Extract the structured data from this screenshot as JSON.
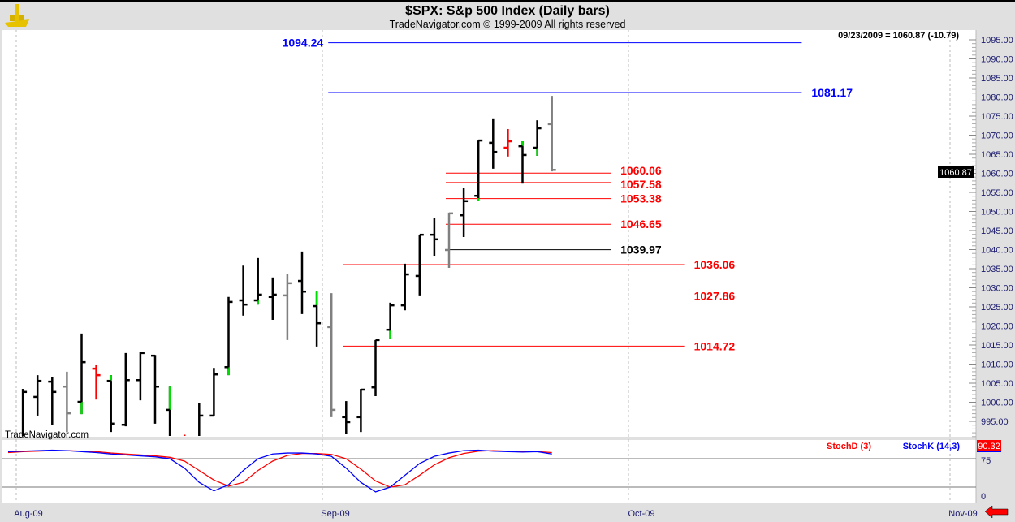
{
  "header": {
    "title": "$SPX:  S&p 500 Index  (Daily bars)",
    "copyright": "TradeNavigator.com © 1999-2009 All rights reserved",
    "readout": "09/23/2009 = 1060.87 (-10.79)",
    "watermark": "TradeNavigator.com"
  },
  "colors": {
    "up": "#000000",
    "gray": "#808080",
    "red": "#ff0000",
    "green": "#00dd00",
    "blue": "#0000ff",
    "axis_text": "#1a1a6e"
  },
  "chart_data": {
    "type": "ohlc",
    "title": "$SPX: S&p 500 Index (Daily bars)",
    "ylim": [
      993,
      1097
    ],
    "y_ticks": [
      995,
      1000,
      1005,
      1010,
      1015,
      1020,
      1025,
      1030,
      1035,
      1040,
      1045,
      1050,
      1055,
      1060,
      1065,
      1070,
      1075,
      1080,
      1085,
      1090,
      1095
    ],
    "last_price": "1060.87",
    "x_ticks": [
      "Aug-09",
      "Sep-09",
      "Oct-09",
      "Nov-09"
    ],
    "bars": [
      {
        "o": 990,
        "h": 991,
        "l": 985,
        "c": 989,
        "col": "red"
      },
      {
        "o": 990,
        "h": 1003.5,
        "l": 985,
        "c": 1002.7,
        "col": "up"
      },
      {
        "o": 1001.4,
        "h": 1007.1,
        "l": 996.5,
        "c": 1005.6,
        "col": "up"
      },
      {
        "o": 1005.4,
        "h": 1006.7,
        "l": 994.1,
        "c": 1002.7,
        "col": "up"
      },
      {
        "o": 1004.1,
        "h": 1008,
        "l": 992.2,
        "c": 997.1,
        "col": "gray"
      },
      {
        "o": 1000.1,
        "h": 1018,
        "l": 996.9,
        "c": 1010.5,
        "col": "up",
        "g": [
          996.9,
          1000.1
        ]
      },
      {
        "o": 1008.8,
        "h": 1009.9,
        "l": 1000.7,
        "c": 1007.1,
        "col": "red"
      },
      {
        "o": 1005.6,
        "h": 1007.1,
        "l": 992.2,
        "c": 994.4,
        "col": "up",
        "g": [
          1005.6,
          1007.1
        ]
      },
      {
        "o": 994.1,
        "h": 1012.9,
        "l": 993.7,
        "c": 1005.8,
        "col": "up"
      },
      {
        "o": 1005.8,
        "h": 1013.2,
        "l": 1000.5,
        "c": 1012.9,
        "col": "up"
      },
      {
        "o": 1012.2,
        "h": 1012.4,
        "l": 994.4,
        "c": 1004.1,
        "col": "up"
      },
      {
        "o": 998,
        "h": 1004.1,
        "l": 985,
        "c": 988,
        "col": "up",
        "g": [
          998,
          1004.1
        ]
      },
      {
        "o": 991,
        "h": 991.5,
        "l": 985,
        "c": 990,
        "col": "red"
      },
      {
        "o": 988,
        "h": 999.7,
        "l": 985,
        "c": 996.5,
        "col": "up"
      },
      {
        "o": 996.5,
        "h": 1009,
        "l": 996.5,
        "c": 1007.3,
        "col": "up"
      },
      {
        "o": 1009.2,
        "h": 1027.6,
        "l": 1007.1,
        "c": 1026.3,
        "col": "up",
        "g": [
          1007.1,
          1009.2
        ]
      },
      {
        "o": 1026.7,
        "h": 1035.8,
        "l": 1022.7,
        "c": 1025.6,
        "col": "up"
      },
      {
        "o": 1026.7,
        "h": 1037.8,
        "l": 1025.6,
        "c": 1028.2,
        "col": "up",
        "g": [
          1025.6,
          1026.7
        ]
      },
      {
        "o": 1027.6,
        "h": 1032.7,
        "l": 1021.6,
        "c": 1028.2,
        "col": "up"
      },
      {
        "o": 1028,
        "h": 1033.5,
        "l": 1016.3,
        "c": 1031.2,
        "col": "gray"
      },
      {
        "o": 1031.8,
        "h": 1039.5,
        "l": 1023.1,
        "c": 1029,
        "col": "up"
      },
      {
        "o": 1025.2,
        "h": 1029,
        "l": 1014.6,
        "c": 1020.7,
        "col": "up",
        "g": [
          1025.2,
          1029
        ]
      },
      {
        "o": 1019.7,
        "h": 1028.6,
        "l": 996.1,
        "c": 998,
        "col": "gray"
      },
      {
        "o": 996.1,
        "h": 1000.3,
        "l": 991.8,
        "c": 994.8,
        "col": "up"
      },
      {
        "o": 996.1,
        "h": 1003.5,
        "l": 992.2,
        "c": 1003.3,
        "col": "up"
      },
      {
        "o": 1003.9,
        "h": 1016.3,
        "l": 1001.6,
        "c": 1016.3,
        "col": "up"
      },
      {
        "o": 1019,
        "h": 1026.1,
        "l": 1016.5,
        "c": 1025.4,
        "col": "up",
        "g": [
          1016.5,
          1019
        ]
      },
      {
        "o": 1025.4,
        "h": 1036.3,
        "l": 1024.1,
        "c": 1033.5,
        "col": "up"
      },
      {
        "o": 1033.1,
        "h": 1043.9,
        "l": 1028,
        "c": 1043.9,
        "col": "up"
      },
      {
        "o": 1043.9,
        "h": 1048.2,
        "l": 1038.4,
        "c": 1042.7,
        "col": "up"
      },
      {
        "o": 1039.9,
        "h": 1049.7,
        "l": 1035.2,
        "c": 1049.5,
        "col": "gray"
      },
      {
        "o": 1049,
        "h": 1056.1,
        "l": 1043.3,
        "c": 1052.7,
        "col": "up"
      },
      {
        "o": 1054.1,
        "h": 1068.6,
        "l": 1052.7,
        "c": 1068.6,
        "col": "up",
        "g": [
          1052.7,
          1053.5
        ]
      },
      {
        "o": 1068,
        "h": 1074.4,
        "l": 1061.2,
        "c": 1065.6,
        "col": "up"
      },
      {
        "o": 1066.7,
        "h": 1071.6,
        "l": 1064.4,
        "c": 1068.4,
        "col": "red"
      },
      {
        "o": 1067.1,
        "h": 1068.4,
        "l": 1057.3,
        "c": 1064.8,
        "col": "up",
        "g": [
          1067.1,
          1068.4
        ]
      },
      {
        "o": 1066.7,
        "h": 1073.9,
        "l": 1064.6,
        "c": 1071.8,
        "col": "up",
        "g": [
          1064.6,
          1066.7
        ]
      },
      {
        "o": 1072.9,
        "h": 1080.3,
        "l": 1060.5,
        "c": 1060.9,
        "col": "gray"
      }
    ],
    "levels": [
      {
        "value": 1094.24,
        "label": "1094.24",
        "color": "blue",
        "from_bar": 22,
        "to_bar": 54,
        "label_side": "left"
      },
      {
        "value": 1081.17,
        "label": "1081.17",
        "color": "blue",
        "from_bar": 22,
        "to_bar": 54,
        "label_side": "right"
      },
      {
        "value": 1060.06,
        "label": "1060.06",
        "color": "red",
        "from_bar": 30,
        "to_bar": 41,
        "label_side": "right"
      },
      {
        "value": 1057.58,
        "label": "1057.58",
        "color": "red",
        "from_bar": 30,
        "to_bar": 41,
        "label_side": "right"
      },
      {
        "value": 1053.38,
        "label": "1053.38",
        "color": "red",
        "from_bar": 30,
        "to_bar": 41,
        "label_side": "right"
      },
      {
        "value": 1046.65,
        "label": "1046.65",
        "color": "red",
        "from_bar": 30,
        "to_bar": 41,
        "label_side": "right"
      },
      {
        "value": 1039.97,
        "label": "1039.97",
        "color": "up",
        "from_bar": 30,
        "to_bar": 41,
        "label_side": "right"
      },
      {
        "value": 1036.06,
        "label": "1036.06",
        "color": "red",
        "from_bar": 23,
        "to_bar": 46,
        "label_side": "right"
      },
      {
        "value": 1027.86,
        "label": "1027.86",
        "color": "red",
        "from_bar": 23,
        "to_bar": 46,
        "label_side": "right"
      },
      {
        "value": 1014.72,
        "label": "1014.72",
        "color": "red",
        "from_bar": 23,
        "to_bar": 46,
        "label_side": "right"
      }
    ],
    "stochastic": {
      "d_label": "StochD (3)",
      "k_label": "StochK (14,3)",
      "last_value": "90.32",
      "y_ticks": [
        "75",
        "0"
      ],
      "k": [
        95,
        96,
        97,
        98,
        97,
        95,
        93,
        90,
        88,
        86,
        84,
        80,
        60,
        30,
        12,
        25,
        55,
        80,
        90,
        92,
        92,
        90,
        85,
        60,
        30,
        10,
        20,
        45,
        70,
        85,
        92,
        97,
        98,
        96,
        95,
        94,
        95,
        90
      ],
      "d": [
        93,
        95,
        96,
        97,
        97,
        96,
        95,
        92,
        90,
        88,
        86,
        83,
        75,
        55,
        35,
        22,
        30,
        55,
        75,
        87,
        91,
        91,
        89,
        80,
        58,
        33,
        20,
        25,
        45,
        67,
        82,
        91,
        96,
        97,
        96,
        95,
        95,
        93
      ]
    }
  }
}
